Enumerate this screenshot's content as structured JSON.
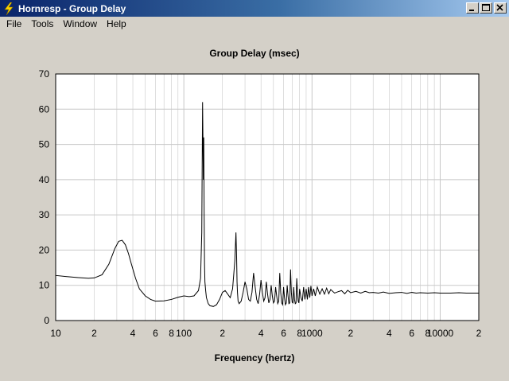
{
  "window": {
    "title": "Hornresp - Group Delay",
    "app_icon": "lightning-bolt-icon",
    "controls": {
      "minimize": "minimize-icon",
      "maximize": "maximize-icon",
      "close": "close-icon"
    }
  },
  "menu": {
    "items": [
      {
        "label": "File"
      },
      {
        "label": "Tools"
      },
      {
        "label": "Window"
      },
      {
        "label": "Help"
      }
    ]
  },
  "colors": {
    "titlebar_start": "#0a246a",
    "titlebar_end": "#a6caf0",
    "face": "#d4d0c8",
    "plot_background": "#ffffff",
    "grid": "#c8c8c8",
    "trace": "#000000"
  },
  "chart_data": {
    "type": "line",
    "title": "Group Delay (msec)",
    "xlabel": "Frequency (hertz)",
    "ylabel": "",
    "x_scale": "log",
    "xlim": [
      10,
      20000
    ],
    "ylim": [
      0,
      70
    ],
    "grid": true,
    "x_tick_labels": [
      {
        "value": 10,
        "label": "10"
      },
      {
        "value": 20,
        "label": "2"
      },
      {
        "value": 40,
        "label": "4"
      },
      {
        "value": 60,
        "label": "6"
      },
      {
        "value": 80,
        "label": "8"
      },
      {
        "value": 100,
        "label": "100"
      },
      {
        "value": 200,
        "label": "2"
      },
      {
        "value": 400,
        "label": "4"
      },
      {
        "value": 600,
        "label": "6"
      },
      {
        "value": 800,
        "label": "8"
      },
      {
        "value": 1000,
        "label": "1000"
      },
      {
        "value": 2000,
        "label": "2"
      },
      {
        "value": 4000,
        "label": "4"
      },
      {
        "value": 6000,
        "label": "6"
      },
      {
        "value": 8000,
        "label": "8"
      },
      {
        "value": 10000,
        "label": "10000"
      },
      {
        "value": 20000,
        "label": "2"
      }
    ],
    "y_ticks": [
      0,
      10,
      20,
      30,
      40,
      50,
      60,
      70
    ],
    "series": [
      {
        "x": [
          10,
          12,
          15,
          18,
          20,
          23,
          26,
          29,
          31,
          33,
          35,
          37,
          39,
          42,
          45,
          50,
          55,
          60,
          70,
          80,
          90,
          100,
          110,
          120,
          130,
          135,
          138,
          140,
          142,
          143,
          144,
          145,
          146,
          148,
          150,
          155,
          160,
          170,
          180,
          190,
          200,
          210,
          220,
          230,
          240,
          250,
          255,
          258,
          260,
          262,
          265,
          270,
          280,
          290,
          300,
          310,
          320,
          330,
          340,
          350,
          360,
          370,
          380,
          390,
          400,
          410,
          420,
          430,
          440,
          450,
          460,
          470,
          480,
          490,
          500,
          510,
          520,
          530,
          540,
          550,
          560,
          570,
          580,
          590,
          600,
          610,
          620,
          630,
          640,
          650,
          660,
          670,
          680,
          690,
          700,
          710,
          720,
          730,
          740,
          750,
          760,
          770,
          780,
          790,
          800,
          820,
          840,
          860,
          880,
          900,
          920,
          940,
          960,
          980,
          1000,
          1030,
          1060,
          1100,
          1150,
          1200,
          1250,
          1300,
          1350,
          1400,
          1500,
          1600,
          1700,
          1800,
          1900,
          2000,
          2200,
          2400,
          2600,
          2800,
          3000,
          3300,
          3600,
          4000,
          4500,
          5000,
          5500,
          6000,
          6500,
          7000,
          8000,
          9000,
          10000,
          12000,
          14000,
          16000,
          18000,
          20000
        ],
        "y": [
          12.8,
          12.5,
          12.2,
          12.0,
          12.1,
          13.0,
          16.0,
          20.5,
          22.5,
          22.8,
          21.5,
          19.0,
          16.0,
          12.0,
          9.0,
          7.0,
          6.0,
          5.5,
          5.6,
          6.0,
          6.6,
          7.0,
          6.8,
          7.0,
          8.5,
          12.0,
          25.0,
          62.0,
          40.0,
          52.0,
          30.0,
          16.0,
          11.0,
          8.5,
          6.5,
          4.8,
          4.2,
          4.0,
          4.5,
          6.0,
          8.0,
          8.5,
          7.5,
          6.5,
          9.0,
          17.0,
          25.0,
          18.0,
          11.0,
          8.0,
          5.5,
          4.8,
          5.5,
          8.0,
          11.0,
          9.0,
          6.0,
          5.5,
          8.0,
          13.5,
          9.5,
          6.0,
          4.8,
          7.5,
          11.5,
          8.0,
          5.5,
          6.5,
          11.0,
          7.5,
          5.0,
          6.0,
          10.0,
          7.0,
          5.0,
          5.5,
          9.5,
          7.0,
          4.8,
          5.5,
          13.5,
          8.0,
          5.0,
          4.5,
          9.5,
          6.5,
          4.5,
          5.0,
          10.0,
          7.0,
          4.8,
          5.0,
          14.5,
          8.0,
          5.2,
          5.0,
          9.5,
          6.0,
          4.8,
          5.0,
          12.0,
          8.0,
          5.5,
          5.0,
          9.0,
          6.5,
          5.5,
          9.5,
          6.0,
          9.0,
          6.0,
          9.5,
          6.5,
          9.8,
          7.0,
          9.0,
          7.0,
          9.5,
          7.5,
          9.0,
          7.5,
          9.2,
          7.6,
          8.8,
          7.8,
          8.2,
          8.5,
          7.6,
          8.6,
          7.9,
          8.3,
          7.8,
          8.3,
          7.9,
          8.0,
          7.8,
          8.1,
          7.7,
          7.9,
          8.0,
          7.7,
          8.0,
          7.8,
          7.9,
          7.8,
          7.9,
          7.8,
          7.8,
          7.9,
          7.8,
          7.8,
          7.8
        ]
      }
    ]
  }
}
